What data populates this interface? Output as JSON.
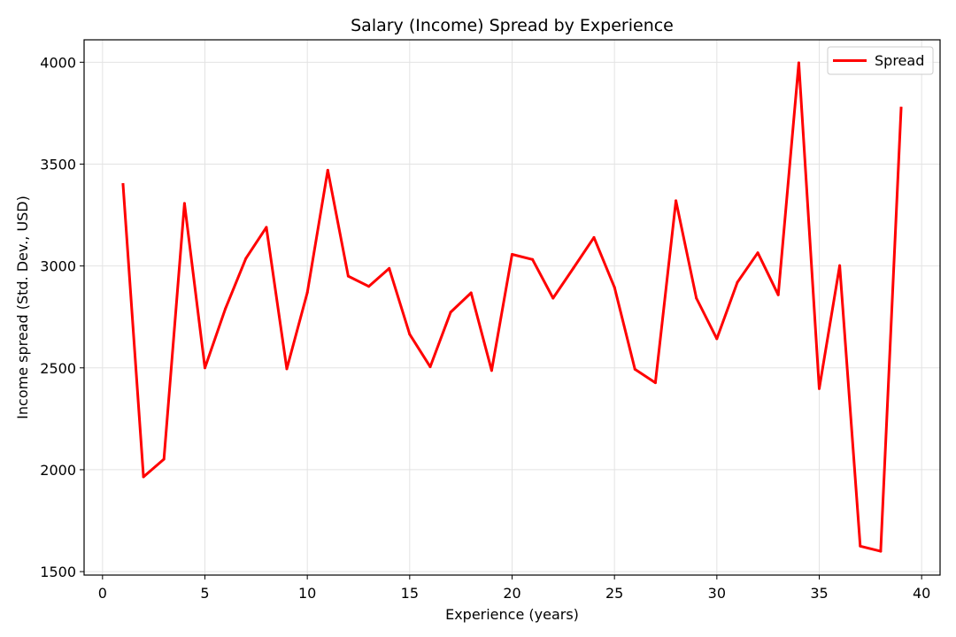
{
  "chart_data": {
    "type": "line",
    "title": "Salary (Income) Spread by Experience",
    "xlabel": "Experience (years)",
    "ylabel": "Income spread (Std. Dev., USD)",
    "xlim": [
      -0.9,
      40.9
    ],
    "ylim": [
      1483,
      4110
    ],
    "xticks": [
      0,
      5,
      10,
      15,
      20,
      25,
      30,
      35,
      40
    ],
    "yticks": [
      1500,
      2000,
      2500,
      3000,
      3500,
      4000
    ],
    "grid": true,
    "legend_position": "top-right",
    "series": [
      {
        "name": "Spread",
        "color": "#ff0000",
        "x": [
          1,
          2,
          3,
          4,
          5,
          6,
          7,
          8,
          9,
          10,
          11,
          12,
          13,
          14,
          15,
          16,
          17,
          18,
          19,
          20,
          21,
          22,
          23,
          24,
          25,
          26,
          27,
          28,
          29,
          30,
          31,
          32,
          33,
          34,
          35,
          36,
          37,
          38,
          39
        ],
        "y": [
          3400,
          1965,
          2052,
          3307,
          2500,
          2790,
          3037,
          3190,
          2495,
          2870,
          3470,
          2950,
          2900,
          2988,
          2665,
          2505,
          2773,
          2868,
          2487,
          3057,
          3032,
          2842,
          2990,
          3140,
          2895,
          2493,
          2427,
          3320,
          2842,
          2643,
          2920,
          3065,
          2858,
          3997,
          2398,
          3002,
          1625,
          1600,
          3775
        ]
      }
    ]
  }
}
